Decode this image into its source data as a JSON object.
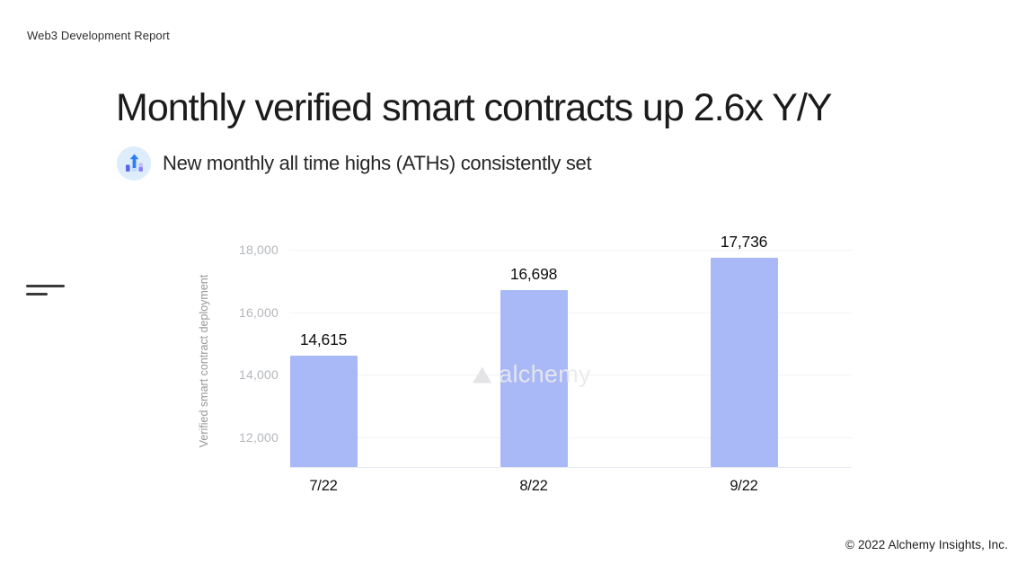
{
  "header": {
    "report_label": "Web3 Development Report"
  },
  "slide": {
    "title": "Monthly verified smart contracts up 2.6x Y/Y",
    "subtitle": "New monthly all time highs (ATHs) consistently set"
  },
  "icons": {
    "subtitle_icon": "bar-chart-rising-icon",
    "subtitle_icon_colors": {
      "circle": "#ddedfb",
      "left_bar": "#5a67e6",
      "arrow": "#2f7cf5",
      "arrow_column": "#c5dcfa",
      "right_bar_top": "#c3bdf6",
      "right_bar_bottom": "#8d80f0"
    },
    "menu_handle_icon": "two-line-handle",
    "watermark_logo": "alchemy-triangle-icon"
  },
  "chart_data": {
    "type": "bar",
    "title": "",
    "categories": [
      "7/22",
      "8/22",
      "9/22"
    ],
    "values": [
      14615,
      16698,
      17736
    ],
    "value_labels": [
      "14,615",
      "16,698",
      "17,736"
    ],
    "xlabel": "",
    "ylabel": "Verified smart contract deployment",
    "ylim": [
      11050,
      18290
    ],
    "yticks": [
      12000,
      14000,
      16000,
      18000
    ],
    "ytick_labels": [
      "12,000",
      "14,000",
      "16,000",
      "18,000"
    ],
    "grid": true,
    "legend": false,
    "bar_color": "#a9b8f6",
    "watermark": "alchemy"
  },
  "footer": {
    "copyright": "© 2022 Alchemy Insights, Inc."
  }
}
